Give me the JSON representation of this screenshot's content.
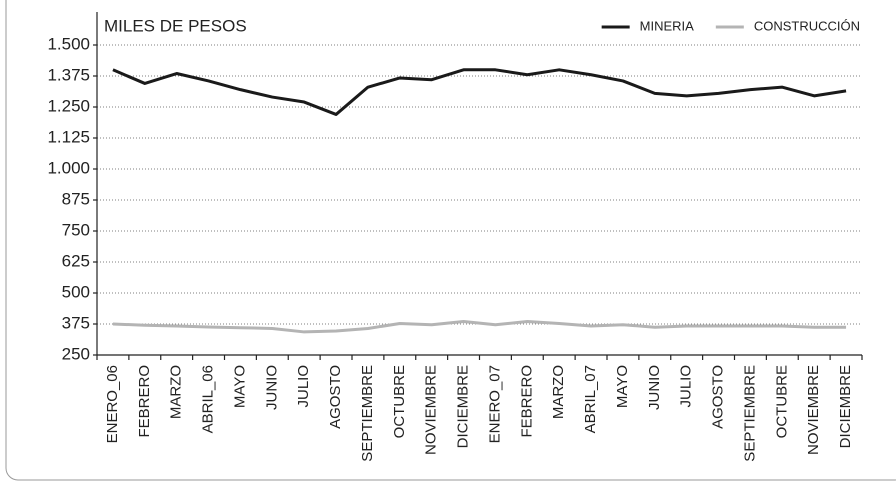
{
  "chart_data": {
    "type": "line",
    "y_label": "MILES DE PESOS",
    "categories": [
      "ENERO_06",
      "FEBRERO",
      "MARZO",
      "ABRIL_06",
      "MAYO",
      "JUNIO",
      "JULIO",
      "AGOSTO",
      "SEPTIEMBRE",
      "OCTUBRE",
      "NOVIEMBRE",
      "DICIEMBRE",
      "ENERO_07",
      "FEBRERO",
      "MARZO",
      "ABRIL_07",
      "MAYO",
      "JUNIO",
      "JULIO",
      "AGOSTO",
      "SEPTIEMBRE",
      "OCTUBRE",
      "NOVIEMBRE",
      "DICIEMBRE"
    ],
    "series": [
      {
        "name": "MINERIA",
        "color": "#1a1a1a",
        "values": [
          1400,
          1345,
          1385,
          1355,
          1320,
          1290,
          1270,
          1220,
          1330,
          1367,
          1360,
          1400,
          1400,
          1380,
          1400,
          1380,
          1355,
          1305,
          1295,
          1305,
          1320,
          1330,
          1295,
          1315
        ]
      },
      {
        "name": "CONSTRUCCIÓN",
        "color": "#b4b4b4",
        "values": [
          375,
          370,
          367,
          363,
          360,
          357,
          343,
          347,
          357,
          377,
          372,
          385,
          372,
          385,
          377,
          367,
          372,
          362,
          367,
          367,
          367,
          367,
          362,
          362
        ]
      }
    ],
    "ylim": [
      250,
      1500
    ],
    "yticks": [
      250,
      375,
      500,
      625,
      750,
      875,
      {
        "value": 1000,
        "label": "1.000"
      },
      {
        "value": 1125,
        "label": "1.125"
      },
      {
        "value": 1250,
        "label": "1.250"
      },
      {
        "value": 1375,
        "label": "1.375"
      },
      {
        "value": 1500,
        "label": "1.500"
      }
    ],
    "grid": true,
    "legend": "top-right"
  }
}
